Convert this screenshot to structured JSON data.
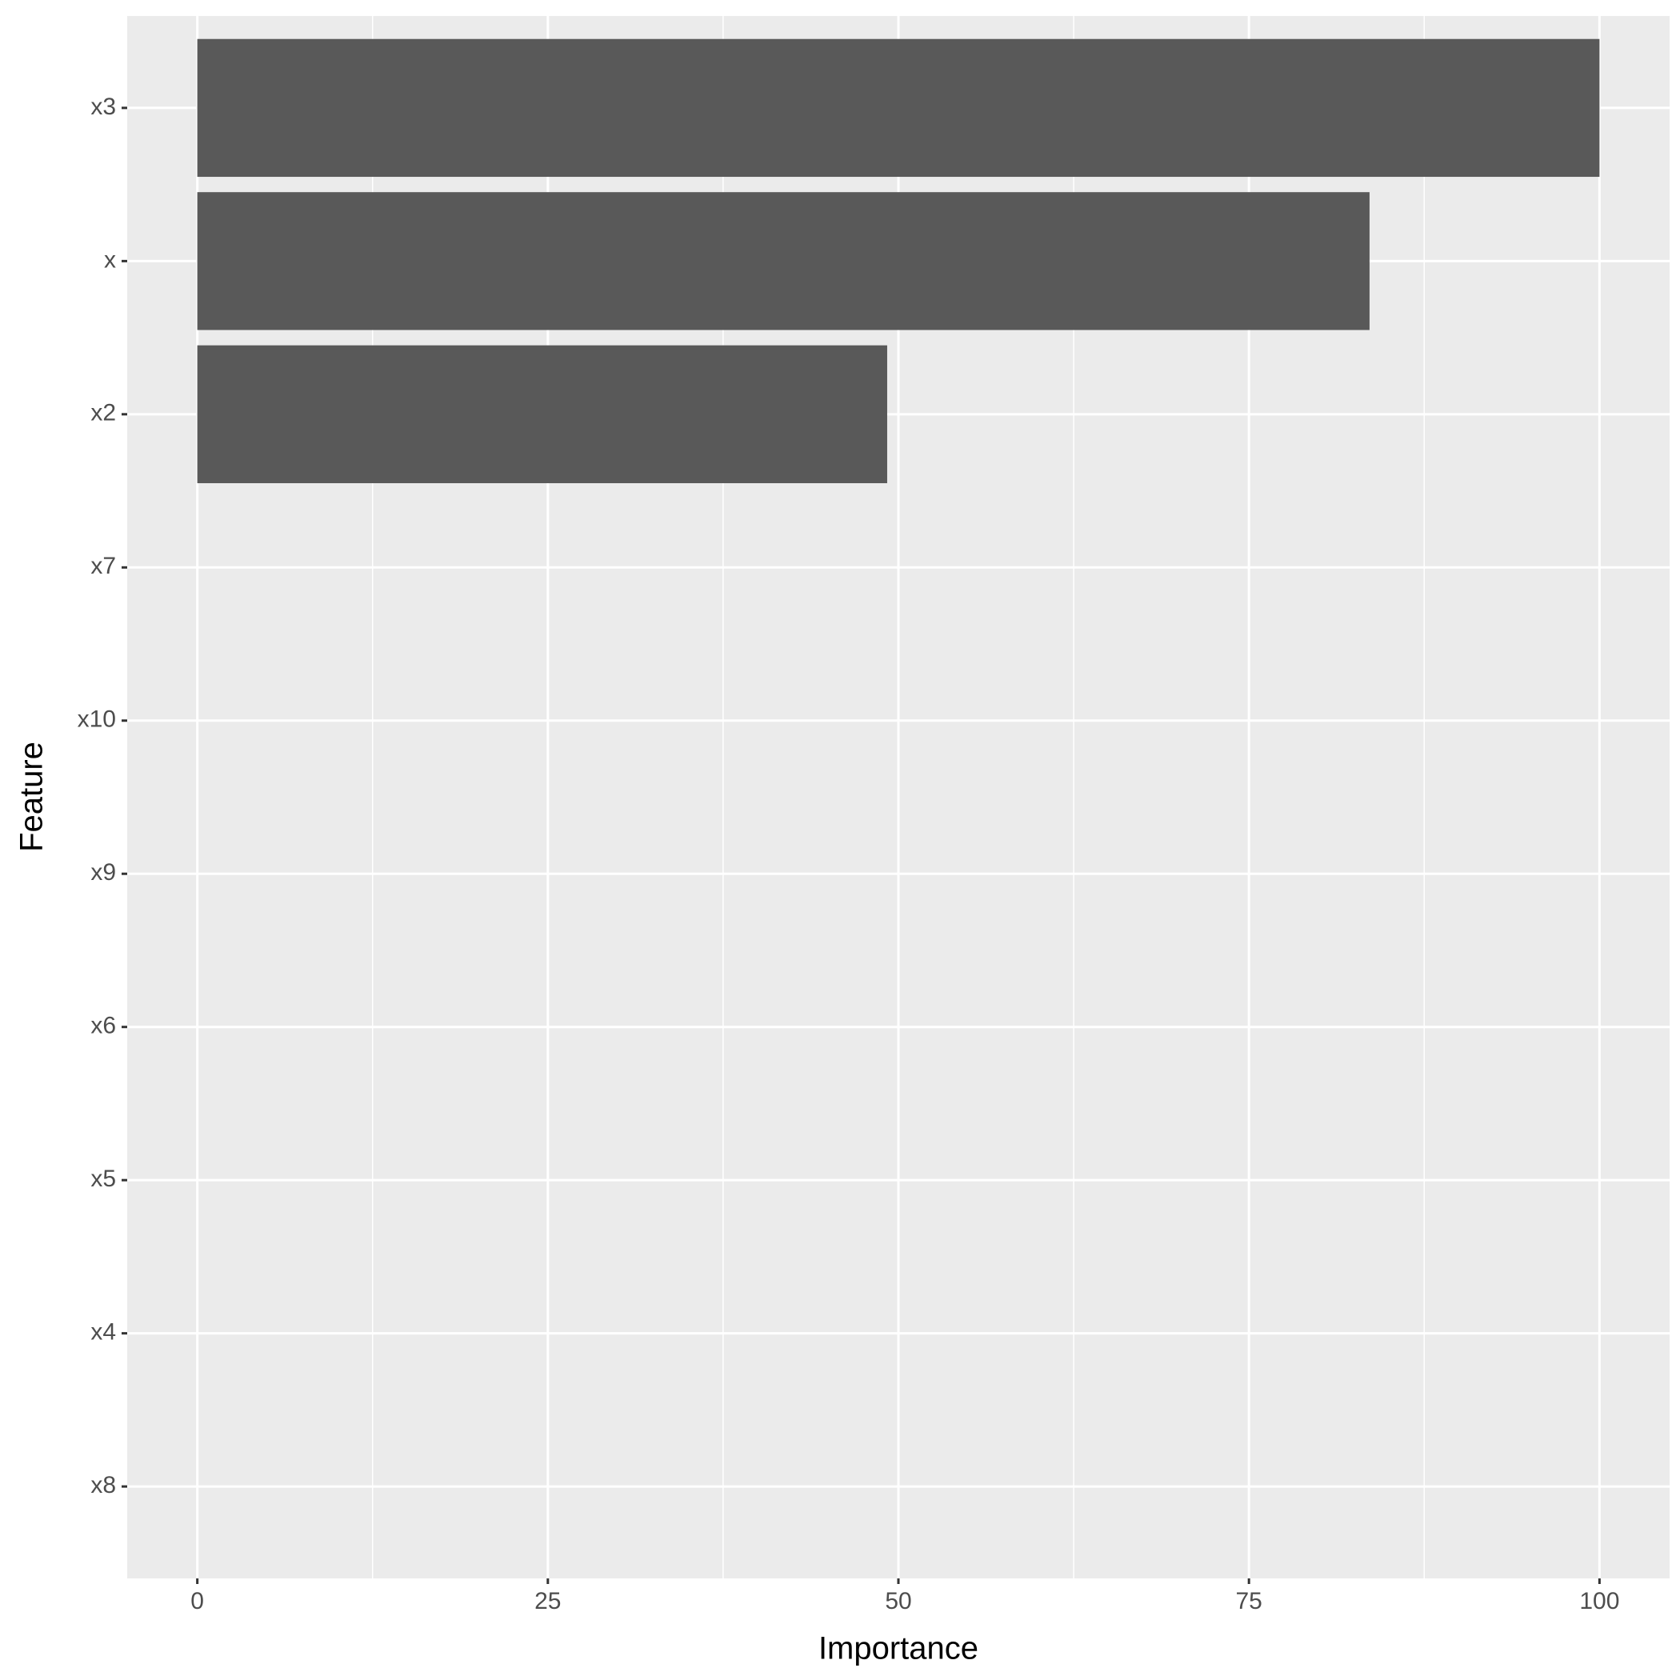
{
  "chart_data": {
    "type": "bar",
    "orientation": "horizontal",
    "x_label": "Importance",
    "y_label": "Feature",
    "categories": [
      "x3",
      "x",
      "x2",
      "x7",
      "x10",
      "x9",
      "x6",
      "x5",
      "x4",
      "x8"
    ],
    "values": [
      100,
      83.6,
      49.2,
      0,
      0,
      0,
      0,
      0,
      0,
      0
    ],
    "color": "#595959",
    "xlim": [
      -5,
      105
    ],
    "xticks": [
      0,
      25,
      50,
      75,
      100
    ],
    "x_minor_grid": [
      12.5,
      37.5,
      62.5,
      87.5
    ],
    "grid": true
  }
}
